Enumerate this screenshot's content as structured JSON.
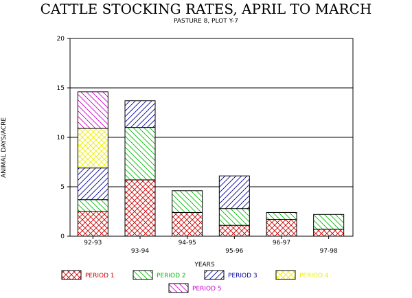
{
  "chart_data": {
    "type": "bar",
    "stacked": true,
    "title": "CATTLE STOCKING RATES, APRIL TO MARCH",
    "subtitle": "PASTURE 8, PLOT Y-7",
    "xlabel": "YEARS",
    "ylabel": "ANIMAL DAYS/ACRE",
    "ylim": [
      0,
      20
    ],
    "yticks": [
      "0",
      "5",
      "10",
      "15",
      "20"
    ],
    "grid": true,
    "legend_position": "bottom",
    "categories": [
      "92-93",
      "93-94",
      "94-95",
      "95-96",
      "96-97",
      "97-98"
    ],
    "series": [
      {
        "name": "PERIOD 1",
        "color": "#cc0000",
        "pattern": "crosshatch",
        "values": [
          2.5,
          5.7,
          2.4,
          1.1,
          1.7,
          0.7
        ]
      },
      {
        "name": "PERIOD 2",
        "color": "#00bb00",
        "pattern": "backslash",
        "values": [
          1.2,
          5.3,
          2.2,
          1.7,
          0.7,
          1.5
        ]
      },
      {
        "name": "PERIOD 3",
        "color": "#000099",
        "pattern": "slash",
        "values": [
          3.2,
          2.7,
          0,
          3.3,
          0,
          0
        ]
      },
      {
        "name": "PERIOD 4",
        "color": "#eeee00",
        "pattern": "crosshatch",
        "values": [
          4.0,
          0,
          0,
          0,
          0,
          0
        ]
      },
      {
        "name": "PERIOD 5",
        "color": "#cc00cc",
        "pattern": "backslash",
        "values": [
          3.7,
          0,
          0,
          0,
          0,
          0
        ]
      }
    ]
  }
}
